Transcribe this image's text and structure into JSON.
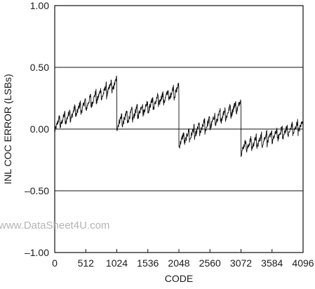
{
  "chart_data": {
    "type": "line",
    "xlabel": "CODE",
    "ylabel": "INL COC ERROR (LSBs)",
    "xlim": [
      0,
      4096
    ],
    "ylim": [
      -1.0,
      1.0
    ],
    "x_ticks": [
      0,
      512,
      1024,
      1536,
      2048,
      2560,
      3072,
      3584,
      4096
    ],
    "x_tick_labels": [
      "0",
      "512",
      "1024",
      "1536",
      "2048",
      "2560",
      "3072",
      "3584",
      "4096"
    ],
    "y_ticks": [
      1.0,
      0.5,
      0.0,
      -0.5,
      -1.0
    ],
    "y_tick_labels": [
      "1.00",
      "0.50",
      "0.00",
      "–0.50",
      "–1.00"
    ],
    "grid": "horizontal",
    "series": [
      {
        "segments": [
          {
            "x_start": 0,
            "x_end": 1024,
            "y_start": 0.03,
            "y_end": 0.37
          },
          {
            "x_start": 1024,
            "x_end": 2048,
            "y_start": 0.05,
            "y_end": 0.32
          },
          {
            "x_start": 2048,
            "x_end": 3072,
            "y_start": -0.1,
            "y_end": 0.2
          },
          {
            "x_start": 3072,
            "x_end": 4096,
            "y_start": -0.15,
            "y_end": 0.03
          }
        ],
        "sawtooth_teeth_per_segment": 12,
        "sawtooth_amplitude": 0.1,
        "noise_amplitude": 0.025
      }
    ]
  },
  "watermark": "www.DataSheet4U.com",
  "colors": {
    "line": "#111111",
    "frame": "#111111",
    "watermark": "#b4b4b4",
    "background": "#ffffff"
  }
}
